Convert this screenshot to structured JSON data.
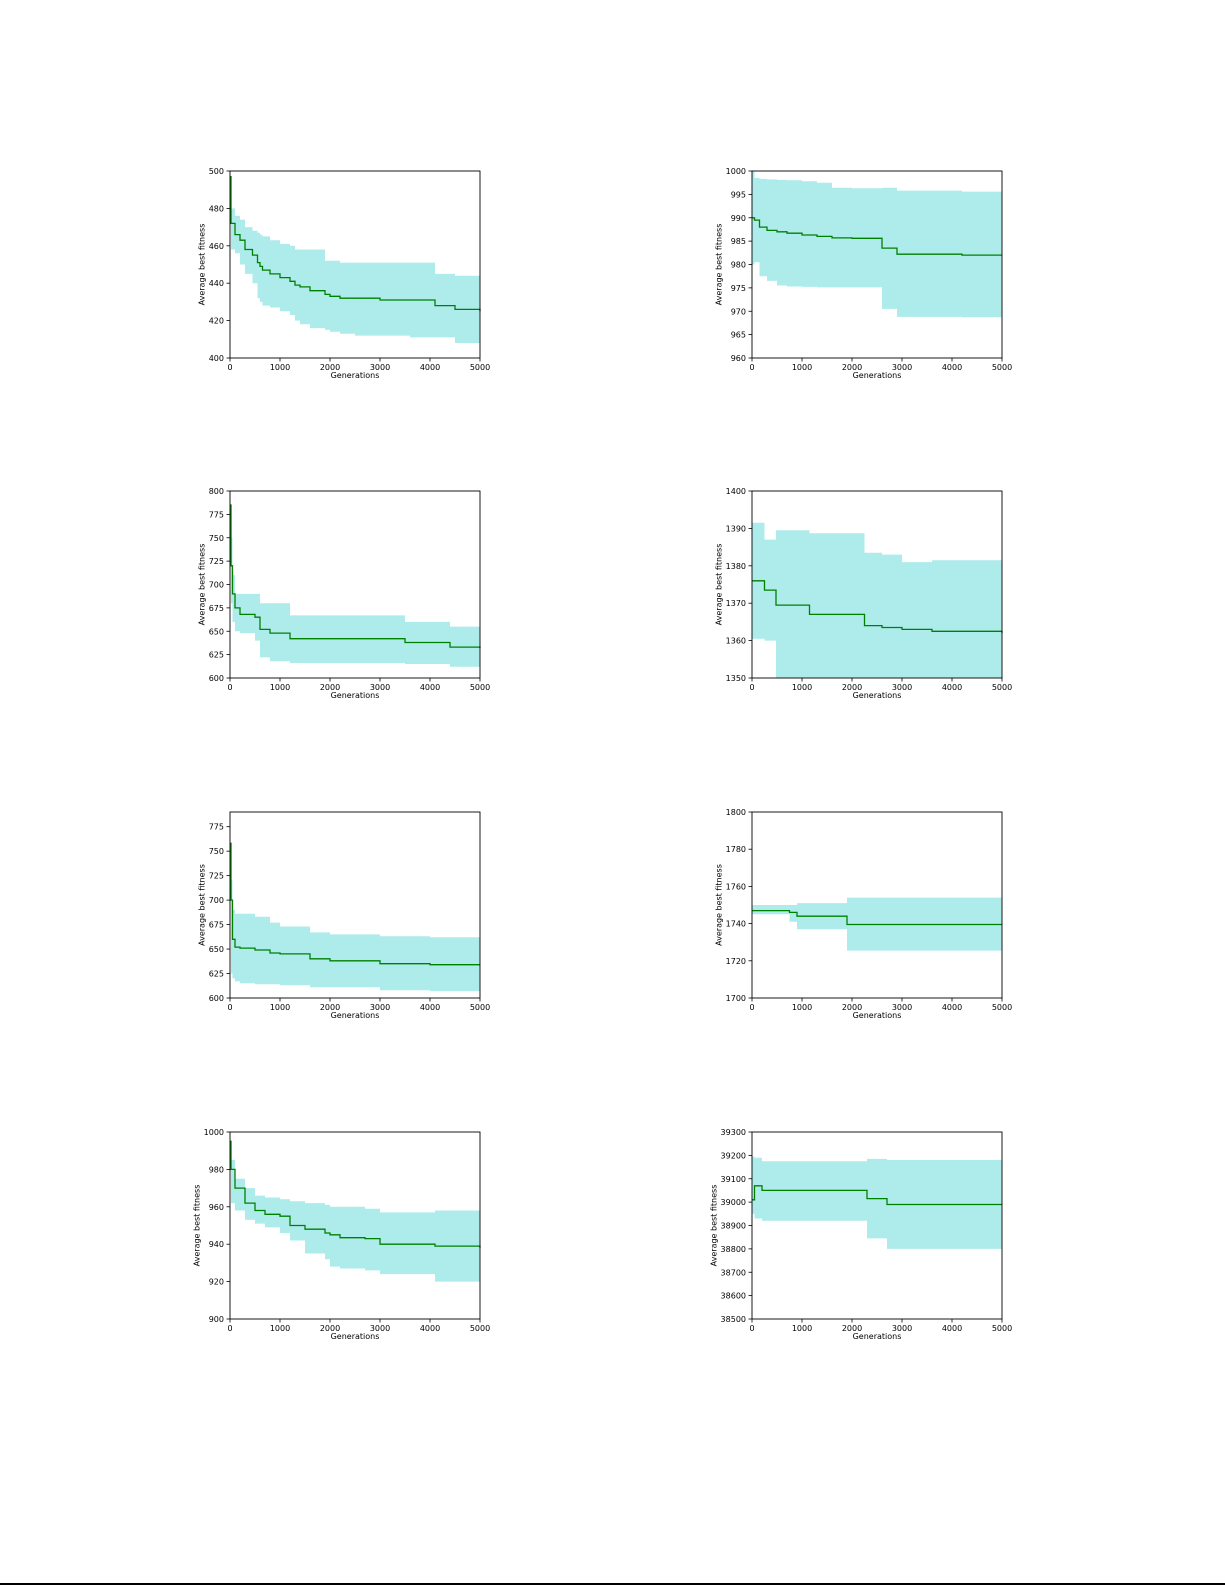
{
  "colors": {
    "band": "#aeecec",
    "line": "#008000",
    "axis": "#000000",
    "text": "#000000"
  },
  "chart_data": [
    {
      "type": "line",
      "xlabel": "Generations",
      "ylabel": "Average best fitness",
      "xlim": [
        0,
        5000
      ],
      "ylim": [
        400,
        500
      ],
      "xticks": [
        "0",
        "1000",
        "2000",
        "3000",
        "4000",
        "5000"
      ],
      "yticks": [
        "400",
        "420",
        "440",
        "460",
        "480",
        "500"
      ],
      "grid": false,
      "legend": "none",
      "series": [
        {
          "x": [
            0,
            20,
            100,
            200,
            300,
            450,
            550,
            600,
            650,
            800,
            1000,
            1200,
            1300,
            1400,
            1600,
            1900,
            2000,
            2200,
            2500,
            3000,
            3600,
            4100,
            4500,
            5000
          ],
          "mean": [
            497,
            472,
            466,
            463,
            458,
            455,
            451,
            449,
            447,
            445,
            443,
            441,
            439,
            438,
            436,
            434,
            433,
            432,
            432,
            431,
            431,
            428,
            426,
            425
          ],
          "upper": [
            497,
            480,
            476,
            474,
            470,
            468,
            467,
            466,
            465,
            463,
            461,
            460,
            458,
            458,
            458,
            452,
            452,
            451,
            451,
            451,
            451,
            445,
            444,
            443
          ],
          "lower": [
            497,
            458,
            456,
            450,
            445,
            440,
            432,
            430,
            428,
            427,
            425,
            423,
            420,
            418,
            416,
            415,
            414,
            413,
            412,
            412,
            411,
            411,
            408,
            408
          ]
        }
      ]
    },
    {
      "type": "line",
      "xlabel": "Generations",
      "ylabel": "Average best fitness",
      "xlim": [
        0,
        5000
      ],
      "ylim": [
        960,
        1000
      ],
      "xticks": [
        "0",
        "1000",
        "2000",
        "3000",
        "4000",
        "5000"
      ],
      "yticks": [
        "960",
        "965",
        "970",
        "975",
        "980",
        "985",
        "990",
        "995",
        "1000"
      ],
      "grid": false,
      "legend": "none",
      "series": [
        {
          "x": [
            0,
            50,
            150,
            300,
            500,
            700,
            1000,
            1300,
            1600,
            2000,
            2600,
            2900,
            4200,
            5000
          ],
          "mean": [
            990,
            989.5,
            988,
            987.3,
            987,
            986.7,
            986.3,
            986,
            985.7,
            985.6,
            983.5,
            982.2,
            982,
            982
          ],
          "upper": [
            1000,
            998.5,
            998.3,
            998.2,
            998.1,
            998,
            997.8,
            997.5,
            996.4,
            996.3,
            996.4,
            995.8,
            995.6,
            995.6
          ],
          "lower": [
            980,
            980.5,
            977.5,
            976.5,
            975.5,
            975.3,
            975.2,
            975.1,
            975.1,
            975.1,
            970.5,
            968.8,
            968.7,
            968.7
          ]
        }
      ]
    },
    {
      "type": "line",
      "xlabel": "Generations",
      "ylabel": "Average best fitness",
      "xlim": [
        0,
        5000
      ],
      "ylim": [
        600,
        800
      ],
      "xticks": [
        "0",
        "1000",
        "2000",
        "3000",
        "4000",
        "5000"
      ],
      "yticks": [
        "600",
        "625",
        "650",
        "675",
        "700",
        "725",
        "750",
        "775",
        "800"
      ],
      "grid": false,
      "legend": "none",
      "series": [
        {
          "x": [
            0,
            20,
            50,
            100,
            200,
            500,
            600,
            800,
            1200,
            2200,
            3500,
            4400,
            5000
          ],
          "mean": [
            785,
            720,
            690,
            675,
            668,
            665,
            652,
            648,
            642,
            642,
            638,
            633,
            632
          ],
          "upper": [
            785,
            750,
            710,
            690,
            690,
            690,
            680,
            680,
            667,
            667,
            660,
            655,
            655
          ],
          "lower": [
            785,
            680,
            660,
            650,
            648,
            640,
            622,
            618,
            616,
            616,
            615,
            612,
            610
          ]
        }
      ]
    },
    {
      "type": "line",
      "xlabel": "Generations",
      "ylabel": "Average best fitness",
      "xlim": [
        0,
        5000
      ],
      "ylim": [
        1350,
        1400
      ],
      "xticks": [
        "0",
        "1000",
        "2000",
        "3000",
        "4000",
        "5000"
      ],
      "yticks": [
        "1350",
        "1360",
        "1370",
        "1380",
        "1390",
        "1400"
      ],
      "grid": false,
      "legend": "none",
      "series": [
        {
          "x": [
            0,
            250,
            480,
            1150,
            2250,
            2600,
            3000,
            3600,
            5000
          ],
          "mean": [
            1376,
            1373.5,
            1369.5,
            1367,
            1364,
            1363.5,
            1363,
            1362.5,
            1362
          ],
          "upper": [
            1391.5,
            1387,
            1389.5,
            1388.7,
            1383.5,
            1383,
            1381,
            1381.5,
            1381
          ],
          "lower": [
            1360.5,
            1360,
            1350,
            1350,
            1350,
            1350,
            1350,
            1350,
            1350
          ]
        }
      ]
    },
    {
      "type": "line",
      "xlabel": "Generations",
      "ylabel": "Average best fitness",
      "xlim": [
        0,
        5000
      ],
      "ylim": [
        600,
        790
      ],
      "xticks": [
        "0",
        "1000",
        "2000",
        "3000",
        "4000",
        "5000"
      ],
      "yticks": [
        "600",
        "625",
        "650",
        "675",
        "700",
        "725",
        "750",
        "775"
      ],
      "grid": false,
      "legend": "none",
      "series": [
        {
          "x": [
            0,
            20,
            50,
            100,
            200,
            500,
            800,
            1000,
            1600,
            2000,
            3000,
            4000,
            5000
          ],
          "mean": [
            758,
            700,
            660,
            652,
            651,
            649,
            646,
            645,
            640,
            638,
            635,
            634,
            634
          ],
          "upper": [
            758,
            720,
            690,
            686,
            686,
            683,
            677,
            673,
            667,
            665,
            663,
            662,
            662
          ],
          "lower": [
            758,
            625,
            620,
            617,
            615,
            614,
            614,
            613,
            611,
            611,
            608,
            607,
            607
          ]
        }
      ]
    },
    {
      "type": "line",
      "xlabel": "Generations",
      "ylabel": "Average best fitness",
      "xlim": [
        0,
        5000
      ],
      "ylim": [
        1700,
        1800
      ],
      "xticks": [
        "0",
        "1000",
        "2000",
        "3000",
        "4000",
        "5000"
      ],
      "yticks": [
        "1700",
        "1720",
        "1740",
        "1760",
        "1780",
        "1800"
      ],
      "grid": false,
      "legend": "none",
      "series": [
        {
          "x": [
            0,
            600,
            750,
            900,
            1900,
            5000
          ],
          "mean": [
            1747,
            1747,
            1746,
            1744,
            1739.5,
            1739.5
          ],
          "upper": [
            1750,
            1750,
            1750,
            1751,
            1754,
            1754
          ],
          "lower": [
            1745,
            1745,
            1741,
            1737,
            1725.5,
            1725.5
          ]
        }
      ]
    },
    {
      "type": "line",
      "xlabel": "Generations",
      "ylabel": "Average best fitness",
      "xlim": [
        0,
        5000
      ],
      "ylim": [
        900,
        1000
      ],
      "xticks": [
        "0",
        "1000",
        "2000",
        "3000",
        "4000",
        "5000"
      ],
      "yticks": [
        "900",
        "920",
        "940",
        "960",
        "980",
        "1000"
      ],
      "grid": false,
      "legend": "none",
      "series": [
        {
          "x": [
            0,
            20,
            100,
            300,
            500,
            700,
            1000,
            1200,
            1500,
            1900,
            2000,
            2200,
            2700,
            3000,
            4100,
            5000
          ],
          "mean": [
            995,
            980,
            970,
            962,
            958,
            956,
            955,
            950,
            948,
            946,
            945,
            943.5,
            943,
            940,
            939,
            938
          ],
          "upper": [
            995,
            985,
            975,
            970,
            966,
            965,
            964,
            963,
            962,
            961,
            960,
            960,
            959,
            957,
            958,
            957
          ],
          "lower": [
            995,
            962,
            958,
            953,
            951,
            949,
            946,
            942,
            935,
            932,
            928,
            927,
            926,
            924,
            920,
            920
          ]
        }
      ]
    },
    {
      "type": "line",
      "xlabel": "Generations",
      "ylabel": "Average best fitness",
      "xlim": [
        0,
        5000
      ],
      "ylim": [
        38500,
        39300
      ],
      "xticks": [
        "0",
        "1000",
        "2000",
        "3000",
        "4000",
        "5000"
      ],
      "yticks": [
        "38500",
        "38600",
        "38700",
        "38800",
        "38900",
        "39000",
        "39100",
        "39200",
        "39300"
      ],
      "grid": false,
      "legend": "none",
      "series": [
        {
          "x": [
            0,
            50,
            200,
            2300,
            2700,
            5000
          ],
          "mean": [
            39010,
            39070,
            39050,
            39015,
            38990,
            38990
          ],
          "upper": [
            39195,
            39190,
            39175,
            39185,
            39180,
            39180
          ],
          "lower": [
            38950,
            38930,
            38920,
            38845,
            38800,
            38800
          ]
        }
      ]
    }
  ]
}
